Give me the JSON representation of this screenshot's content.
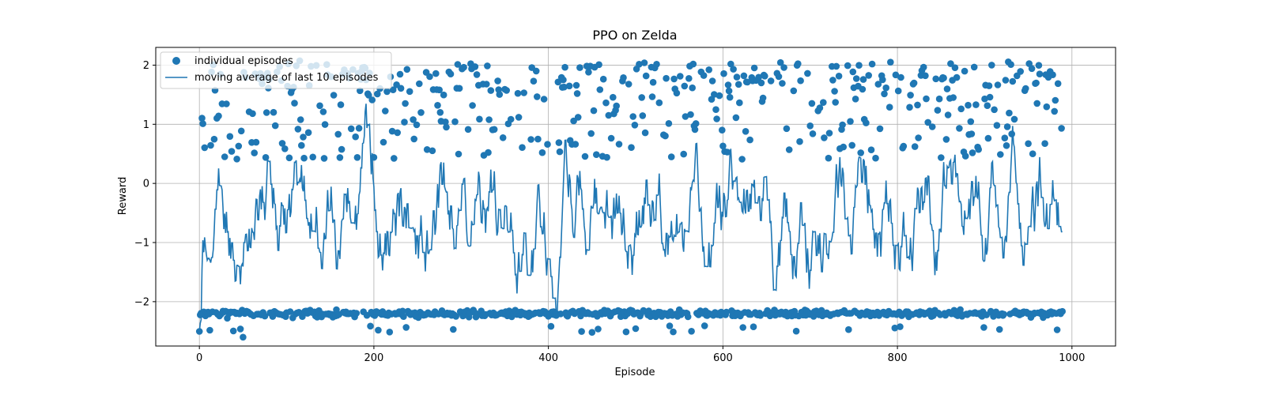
{
  "chart_data": {
    "type": "scatter",
    "title": "PPO on Zelda",
    "xlabel": "Episode",
    "ylabel": "Reward",
    "xlim": [
      -50,
      1050
    ],
    "ylim": [
      -2.75,
      2.3
    ],
    "xticks": [
      0,
      200,
      400,
      600,
      800,
      1000
    ],
    "yticks": [
      -2,
      -1,
      0,
      1,
      2
    ],
    "grid": true,
    "legend_position": "top-left",
    "color": "#1f77b4",
    "series": [
      {
        "name": "individual episodes",
        "kind": "scatter",
        "seed": 7,
        "count": 990
      },
      {
        "name": "moving average of last 10 episodes",
        "kind": "line",
        "window": 10
      }
    ]
  }
}
